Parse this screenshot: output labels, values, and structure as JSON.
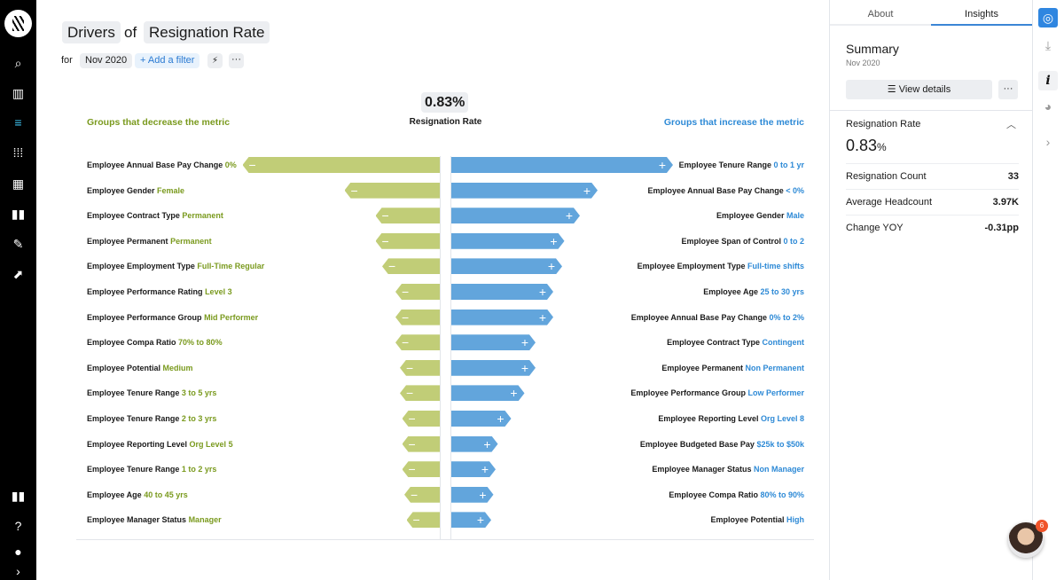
{
  "nav": {
    "items": [
      "search-icon",
      "book-icon",
      "drivers-icon",
      "apps-icon",
      "dashboard-icon",
      "stories-icon",
      "pen-icon",
      "export-icon",
      "chart-icon",
      "help-icon",
      "user-icon",
      "expand-icon"
    ]
  },
  "header": {
    "title_a": "Drivers",
    "title_of": "of",
    "title_b": "Resignation Rate",
    "for": "for",
    "date": "Nov 2020",
    "add_filter": "+ Add a filter",
    "bolt": "⚡",
    "more": "···"
  },
  "chart_data": {
    "type": "bar",
    "metric_value": "0.83%",
    "metric_name": "Resignation Rate",
    "left_title": "Groups that decrease the metric",
    "right_title": "Groups that increase the metric",
    "colors": {
      "decrease": "#c1cd77",
      "increase": "#62a5dc"
    },
    "decrease": [
      {
        "dim": "Employee Annual Base Pay Change",
        "val": "0%",
        "impact": 0.89
      },
      {
        "dim": "Employee Gender",
        "val": "Female",
        "impact": 0.43
      },
      {
        "dim": "Employee Contract Type",
        "val": "Permanent",
        "impact": 0.29
      },
      {
        "dim": "Employee Permanent",
        "val": "Permanent",
        "impact": 0.29
      },
      {
        "dim": "Employee Employment Type",
        "val": "Full-Time Regular",
        "impact": 0.26
      },
      {
        "dim": "Employee Performance Rating",
        "val": "Level 3",
        "impact": 0.2
      },
      {
        "dim": "Employee Performance Group",
        "val": "Mid Performer",
        "impact": 0.2
      },
      {
        "dim": "Employee Compa Ratio",
        "val": "70% to 80%",
        "impact": 0.2
      },
      {
        "dim": "Employee Potential",
        "val": "Medium",
        "impact": 0.18
      },
      {
        "dim": "Employee Tenure Range",
        "val": "3 to 5 yrs",
        "impact": 0.18
      },
      {
        "dim": "Employee Tenure Range",
        "val": "2 to 3 yrs",
        "impact": 0.17
      },
      {
        "dim": "Employee Reporting Level",
        "val": "Org Level 5",
        "impact": 0.17
      },
      {
        "dim": "Employee Tenure Range",
        "val": "1 to 2 yrs",
        "impact": 0.17
      },
      {
        "dim": "Employee Age",
        "val": "40 to 45 yrs",
        "impact": 0.16
      },
      {
        "dim": "Employee Manager Status",
        "val": "Manager",
        "impact": 0.15
      }
    ],
    "increase": [
      {
        "dim": "Employee Tenure Range",
        "val": "0 to 1 yr",
        "impact": 1.0
      },
      {
        "dim": "Employee Annual Base Pay Change",
        "val": "< 0%",
        "impact": 0.66
      },
      {
        "dim": "Employee Gender",
        "val": "Male",
        "impact": 0.58
      },
      {
        "dim": "Employee Span of Control",
        "val": "0 to 2",
        "impact": 0.51
      },
      {
        "dim": "Employee Employment Type",
        "val": "Full-time shifts",
        "impact": 0.5
      },
      {
        "dim": "Employee Age",
        "val": "25 to 30 yrs",
        "impact": 0.46
      },
      {
        "dim": "Employee Annual Base Pay Change",
        "val": "0% to 2%",
        "impact": 0.46
      },
      {
        "dim": "Employee Contract Type",
        "val": "Contingent",
        "impact": 0.38
      },
      {
        "dim": "Employee Permanent",
        "val": "Non Permanent",
        "impact": 0.38
      },
      {
        "dim": "Employee Performance Group",
        "val": "Low Performer",
        "impact": 0.33
      },
      {
        "dim": "Employee Reporting Level",
        "val": "Org Level 8",
        "impact": 0.27
      },
      {
        "dim": "Employee Budgeted Base Pay",
        "val": "$25k to $50k",
        "impact": 0.21
      },
      {
        "dim": "Employee Manager Status",
        "val": "Non Manager",
        "impact": 0.2
      },
      {
        "dim": "Employee Compa Ratio",
        "val": "80% to 90%",
        "impact": 0.19
      },
      {
        "dim": "Employee Potential",
        "val": "High",
        "impact": 0.18
      }
    ]
  },
  "panel": {
    "tabs": [
      "About",
      "Insights"
    ],
    "active_tab": "Insights",
    "summary": "Summary",
    "date": "Nov 2020",
    "view_details": "☰ View details",
    "more": "···",
    "metric": "Resignation Rate",
    "value": "0.83",
    "unit": "%",
    "stats": [
      {
        "label": "Resignation Count",
        "value": "33"
      },
      {
        "label": "Average Headcount",
        "value": "3.97K"
      },
      {
        "label": "Change YOY",
        "value": "-0.31pp"
      }
    ]
  },
  "chat": {
    "badge": "6"
  }
}
